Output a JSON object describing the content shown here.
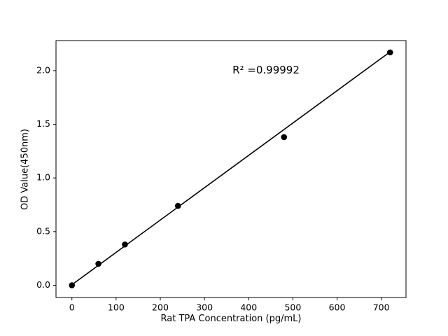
{
  "chart_data": {
    "type": "scatter",
    "x": [
      0,
      60,
      120,
      240,
      480,
      720
    ],
    "y": [
      0.0,
      0.2,
      0.38,
      0.74,
      1.38,
      2.17
    ],
    "fit_line": {
      "x": [
        0,
        720
      ],
      "y": [
        0.005,
        2.175
      ]
    },
    "annotation": "R² =0.99992",
    "xlabel": "Rat TPA Concentration (pg/mL)",
    "ylabel": "OD Value(450nm)",
    "xticks": [
      0,
      100,
      200,
      300,
      400,
      500,
      600,
      700
    ],
    "yticks": [
      "0.0",
      "0.5",
      "1.0",
      "1.5",
      "2.0"
    ],
    "xlim": [
      -36,
      756
    ],
    "ylim": [
      -0.114,
      2.28
    ],
    "marker_color": "#000000",
    "line_color": "#000000",
    "axis_color": "#000000",
    "background": "#ffffff",
    "legend": "none",
    "grid": false
  }
}
